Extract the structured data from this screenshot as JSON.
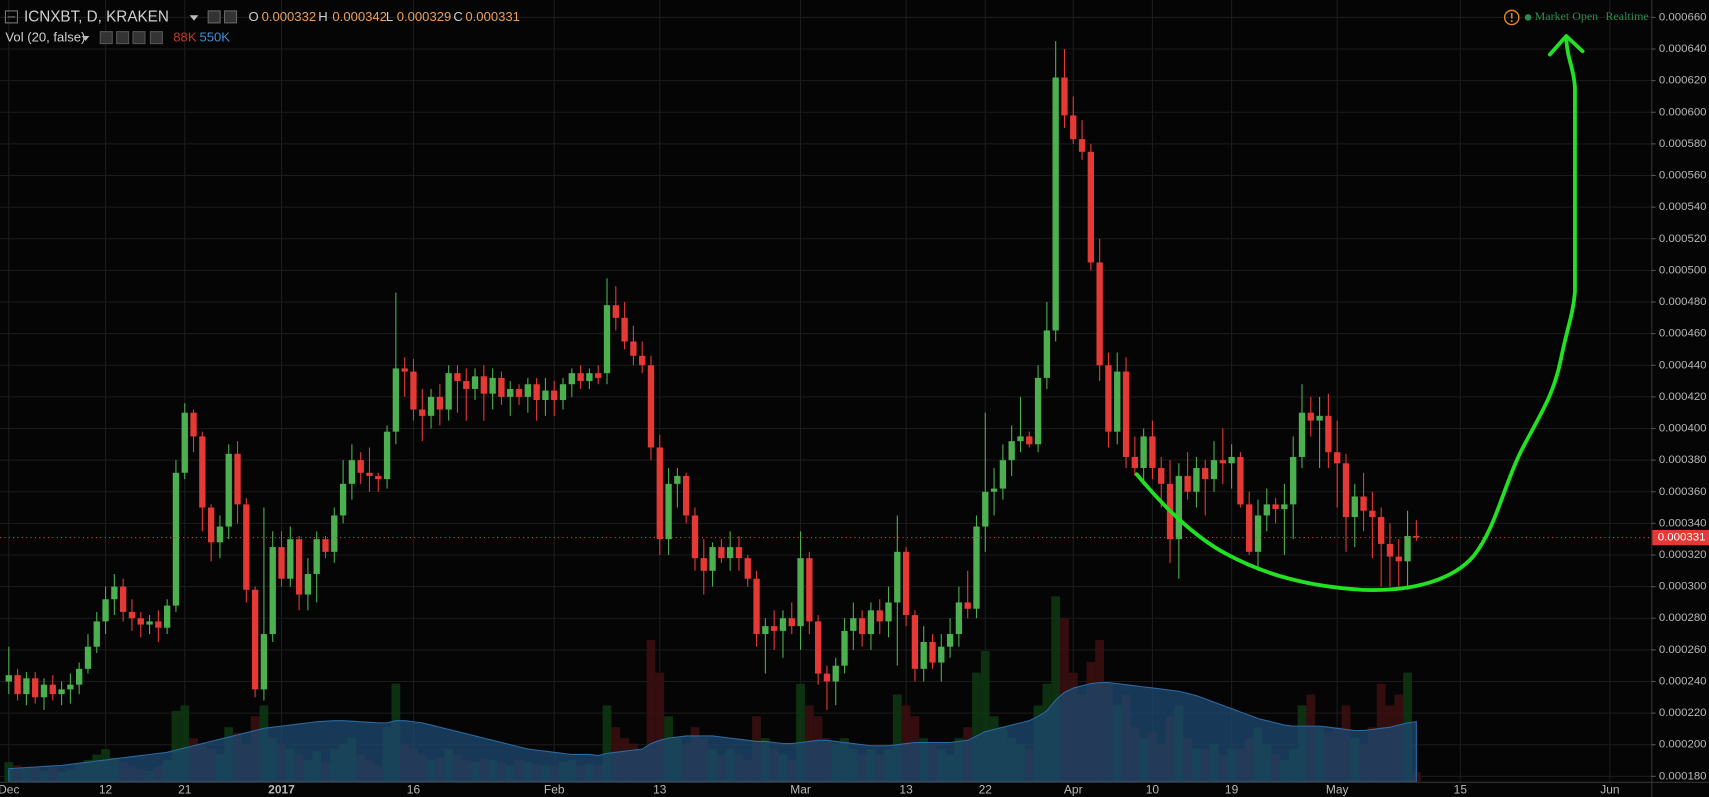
{
  "header": {
    "symbol": "ICNXBT, D, KRAKEN",
    "ohlc": [
      {
        "key": "O",
        "value": "0.000332"
      },
      {
        "key": "H",
        "value": "0.000342"
      },
      {
        "key": "L",
        "value": "0.000329"
      },
      {
        "key": "C",
        "value": "0.000331"
      }
    ],
    "indicator": "Vol (20, false)",
    "indicator_values": [
      {
        "label": "88K",
        "color": "#c0392b"
      },
      {
        "label": "550K",
        "color": "#3d8fd6"
      }
    ],
    "status": "Market Open",
    "mode": "Realtime"
  },
  "chart_data": {
    "type": "candlestick",
    "up_color": "#4caf50",
    "down_color": "#e53935",
    "volume_up_color": "#0d3512",
    "volume_down_color": "#3a0f0f",
    "ma_color": "#1d4a72",
    "grid": true,
    "grid_color": "#1c1c1c",
    "xlim": [
      -1,
      186.7
    ],
    "xticks": [
      {
        "value": 0,
        "label": "Dec"
      },
      {
        "value": 11,
        "label": "12"
      },
      {
        "value": 20,
        "label": "21"
      },
      {
        "value": 31,
        "label": "2017",
        "bold": true
      },
      {
        "value": 46,
        "label": "16"
      },
      {
        "value": 62,
        "label": "Feb"
      },
      {
        "value": 74,
        "label": "13"
      },
      {
        "value": 90,
        "label": "Mar"
      },
      {
        "value": 102,
        "label": "13"
      },
      {
        "value": 111,
        "label": "22"
      },
      {
        "value": 121,
        "label": "Apr"
      },
      {
        "value": 130,
        "label": "10"
      },
      {
        "value": 139,
        "label": "19"
      },
      {
        "value": 151,
        "label": "May"
      },
      {
        "value": 165,
        "label": "15"
      },
      {
        "value": 182,
        "label": "Jun"
      }
    ],
    "ylim": [
      0.0001766,
      0.000671
    ],
    "yticks": [
      {
        "value": 0.00018,
        "label": "0.000180"
      },
      {
        "value": 0.0002,
        "label": "0.000200"
      },
      {
        "value": 0.00022,
        "label": "0.000220"
      },
      {
        "value": 0.00024,
        "label": "0.000240"
      },
      {
        "value": 0.00026,
        "label": "0.000260"
      },
      {
        "value": 0.00028,
        "label": "0.000280"
      },
      {
        "value": 0.0003,
        "label": "0.000300"
      },
      {
        "value": 0.00032,
        "label": "0.000320"
      },
      {
        "value": 0.00034,
        "label": "0.000340"
      },
      {
        "value": 0.00036,
        "label": "0.000360"
      },
      {
        "value": 0.00038,
        "label": "0.000380"
      },
      {
        "value": 0.0004,
        "label": "0.000400"
      },
      {
        "value": 0.00042,
        "label": "0.000420"
      },
      {
        "value": 0.00044,
        "label": "0.000440"
      },
      {
        "value": 0.00046,
        "label": "0.000460"
      },
      {
        "value": 0.00048,
        "label": "0.000480"
      },
      {
        "value": 0.0005,
        "label": "0.000500"
      },
      {
        "value": 0.00052,
        "label": "0.000520"
      },
      {
        "value": 0.00054,
        "label": "0.000540"
      },
      {
        "value": 0.00056,
        "label": "0.000560"
      },
      {
        "value": 0.00058,
        "label": "0.000580"
      },
      {
        "value": 0.0006,
        "label": "0.000600"
      },
      {
        "value": 0.00062,
        "label": "0.000620"
      },
      {
        "value": 0.00064,
        "label": "0.000640"
      },
      {
        "value": 0.00066,
        "label": "0.000660"
      }
    ],
    "last_price": {
      "value": 0.000331,
      "label": "0.000331"
    },
    "open": [
      0.00024,
      0.000244,
      0.000232,
      0.000242,
      0.00023,
      0.000238,
      0.000232,
      0.000235,
      0.000238,
      0.000248,
      0.000262,
      0.000278,
      0.000292,
      0.0003,
      0.000284,
      0.00028,
      0.000276,
      0.000278,
      0.000274,
      0.000288,
      0.000372,
      0.00041,
      0.000395,
      0.00035,
      0.000328,
      0.000338,
      0.000384,
      0.000352,
      0.000298,
      0.000235,
      0.00027,
      0.000325,
      0.000305,
      0.00033,
      0.000295,
      0.000308,
      0.00033,
      0.000322,
      0.000345,
      0.000365,
      0.00038,
      0.000372,
      0.00037,
      0.000368,
      0.000398,
      0.000438,
      0.000436,
      0.000412,
      0.000408,
      0.00042,
      0.000412,
      0.000435,
      0.00043,
      0.000425,
      0.000433,
      0.000422,
      0.000432,
      0.00042,
      0.000425,
      0.00042,
      0.000428,
      0.000418,
      0.000424,
      0.000418,
      0.000428,
      0.000435,
      0.00043,
      0.000435,
      0.000435,
      0.000478,
      0.00047,
      0.000455,
      0.000446,
      0.00044,
      0.000388,
      0.00033,
      0.000365,
      0.00037,
      0.000345,
      0.000318,
      0.00031,
      0.000325,
      0.000318,
      0.000325,
      0.000318,
      0.000305,
      0.00027,
      0.000275,
      0.000272,
      0.00028,
      0.000275,
      0.000318,
      0.000278,
      0.000245,
      0.00024,
      0.00025,
      0.000272,
      0.00028,
      0.00027,
      0.000285,
      0.000278,
      0.00029,
      0.000322,
      0.000282,
      0.000248,
      0.000265,
      0.000252,
      0.000262,
      0.00027,
      0.00029,
      0.000286,
      0.000338,
      0.00036,
      0.000362,
      0.00038,
      0.000392,
      0.000395,
      0.00039,
      0.000432,
      0.000462,
      0.000622,
      0.000598,
      0.000583,
      0.000575,
      0.000505,
      0.00044,
      0.000398,
      0.000436,
      0.000382,
      0.000375,
      0.000395,
      0.000375,
      0.000365,
      0.00033,
      0.00037,
      0.00036,
      0.000375,
      0.000368,
      0.00038,
      0.000378,
      0.000382,
      0.000352,
      0.000322,
      0.000345,
      0.000352,
      0.000349,
      0.000352,
      0.000382,
      0.00041,
      0.000405,
      0.000408,
      0.000385,
      0.000378,
      0.000344,
      0.000357,
      0.000348,
      0.000344,
      0.000327,
      0.000319,
      0.000316,
      0.000332
    ],
    "high": [
      0.000262,
      0.000248,
      0.000246,
      0.000246,
      0.000242,
      0.000244,
      0.00024,
      0.000245,
      0.000252,
      0.00027,
      0.000284,
      0.0003,
      0.000308,
      0.000305,
      0.000292,
      0.000284,
      0.000282,
      0.000285,
      0.000292,
      0.00038,
      0.000416,
      0.000412,
      0.000398,
      0.000352,
      0.000345,
      0.00039,
      0.000392,
      0.000356,
      0.0003,
      0.00035,
      0.000335,
      0.000335,
      0.000338,
      0.000332,
      0.000318,
      0.000335,
      0.000332,
      0.00035,
      0.00038,
      0.00039,
      0.000385,
      0.000388,
      0.000372,
      0.000402,
      0.000486,
      0.000445,
      0.000444,
      0.000425,
      0.000425,
      0.000428,
      0.00044,
      0.00044,
      0.000438,
      0.000438,
      0.00044,
      0.000438,
      0.000436,
      0.00043,
      0.000428,
      0.000432,
      0.000432,
      0.000432,
      0.00043,
      0.000432,
      0.000438,
      0.00044,
      0.000438,
      0.00044,
      0.000495,
      0.00049,
      0.00048,
      0.000465,
      0.000455,
      0.000446,
      0.000396,
      0.000375,
      0.000375,
      0.000372,
      0.00035,
      0.00033,
      0.000328,
      0.00033,
      0.000335,
      0.000332,
      0.00032,
      0.00031,
      0.00028,
      0.000285,
      0.000285,
      0.00029,
      0.000335,
      0.000322,
      0.000282,
      0.00025,
      0.000255,
      0.00028,
      0.00029,
      0.000285,
      0.00029,
      0.000292,
      0.0003,
      0.000345,
      0.000325,
      0.000285,
      0.000275,
      0.00027,
      0.00027,
      0.00028,
      0.0003,
      0.00031,
      0.000345,
      0.00041,
      0.000375,
      0.00039,
      0.000402,
      0.00042,
      0.000398,
      0.00044,
      0.00048,
      0.000645,
      0.00064,
      0.00061,
      0.000595,
      0.00058,
      0.00052,
      0.000448,
      0.000448,
      0.000445,
      0.000395,
      0.0004,
      0.000405,
      0.000382,
      0.00038,
      0.000378,
      0.000385,
      0.000382,
      0.00038,
      0.000392,
      0.0004,
      0.00039,
      0.000385,
      0.00036,
      0.000355,
      0.000362,
      0.000356,
      0.000365,
      0.000395,
      0.000428,
      0.00042,
      0.00042,
      0.000422,
      0.000405,
      0.000384,
      0.000365,
      0.000372,
      0.00036,
      0.00035,
      0.00034,
      0.00033,
      0.000348,
      0.000342
    ],
    "low": [
      0.000232,
      0.000228,
      0.000225,
      0.000226,
      0.000222,
      0.000228,
      0.000225,
      0.000226,
      0.000232,
      0.000245,
      0.000258,
      0.00027,
      0.000282,
      0.000278,
      0.000272,
      0.000268,
      0.00027,
      0.000265,
      0.00027,
      0.000284,
      0.000368,
      0.000385,
      0.000335,
      0.000316,
      0.000318,
      0.00033,
      0.00034,
      0.00029,
      0.00023,
      0.000228,
      0.000265,
      0.0003,
      0.0003,
      0.000285,
      0.000285,
      0.00029,
      0.000318,
      0.000315,
      0.00034,
      0.000355,
      0.000365,
      0.00036,
      0.00036,
      0.000362,
      0.00039,
      0.00042,
      0.000405,
      0.000392,
      0.0004,
      0.000402,
      0.000405,
      0.00041,
      0.000405,
      0.000418,
      0.000405,
      0.000412,
      0.000415,
      0.000408,
      0.000415,
      0.00041,
      0.000405,
      0.000408,
      0.000408,
      0.000412,
      0.00042,
      0.000425,
      0.000425,
      0.000428,
      0.000428,
      0.000462,
      0.00045,
      0.00044,
      0.000435,
      0.00038,
      0.00032,
      0.00032,
      0.00035,
      0.00034,
      0.00031,
      0.000295,
      0.0003,
      0.000315,
      0.00031,
      0.00031,
      0.0003,
      0.000262,
      0.000245,
      0.00026,
      0.000255,
      0.00027,
      0.00026,
      0.00027,
      0.000238,
      0.000222,
      0.000225,
      0.000245,
      0.00026,
      0.000262,
      0.00026,
      0.00027,
      0.000268,
      0.00025,
      0.000275,
      0.00024,
      0.00024,
      0.000248,
      0.00024,
      0.000255,
      0.000262,
      0.00028,
      0.00028,
      0.000322,
      0.000345,
      0.000355,
      0.00037,
      0.000385,
      0.000388,
      0.000385,
      0.000425,
      0.000455,
      0.00059,
      0.00058,
      0.00057,
      0.0005,
      0.00043,
      0.000388,
      0.00039,
      0.000375,
      0.00037,
      0.000365,
      0.000368,
      0.00035,
      0.000315,
      0.000305,
      0.000355,
      0.00035,
      0.000345,
      0.00036,
      0.000365,
      0.000362,
      0.00035,
      0.00032,
      0.00031,
      0.000335,
      0.00034,
      0.00032,
      0.00033,
      0.000375,
      0.000395,
      0.000375,
      0.000375,
      0.00035,
      0.000322,
      0.000325,
      0.000335,
      0.000318,
      0.0003,
      0.0003,
      0.0003,
      0.000298,
      0.000329
    ],
    "close": [
      0.000244,
      0.000232,
      0.000242,
      0.00023,
      0.000238,
      0.000232,
      0.000235,
      0.000238,
      0.000248,
      0.000262,
      0.000278,
      0.000292,
      0.0003,
      0.000284,
      0.00028,
      0.000276,
      0.000278,
      0.000274,
      0.000288,
      0.000372,
      0.00041,
      0.000395,
      0.00035,
      0.000328,
      0.000338,
      0.000384,
      0.000352,
      0.000298,
      0.000235,
      0.00027,
      0.000325,
      0.000305,
      0.00033,
      0.000295,
      0.000308,
      0.00033,
      0.000322,
      0.000345,
      0.000365,
      0.00038,
      0.000372,
      0.00037,
      0.000368,
      0.000398,
      0.000438,
      0.000436,
      0.000412,
      0.000408,
      0.00042,
      0.000412,
      0.000435,
      0.00043,
      0.000425,
      0.000433,
      0.000422,
      0.000432,
      0.00042,
      0.000425,
      0.00042,
      0.000428,
      0.000418,
      0.000424,
      0.000418,
      0.000428,
      0.000435,
      0.00043,
      0.000435,
      0.000432,
      0.000478,
      0.00047,
      0.000455,
      0.000446,
      0.00044,
      0.000388,
      0.00033,
      0.000365,
      0.00037,
      0.000345,
      0.000318,
      0.00031,
      0.000325,
      0.000318,
      0.000325,
      0.000318,
      0.000305,
      0.00027,
      0.000275,
      0.000272,
      0.00028,
      0.000275,
      0.000318,
      0.000278,
      0.000245,
      0.00024,
      0.00025,
      0.000272,
      0.00028,
      0.00027,
      0.000285,
      0.000278,
      0.00029,
      0.000322,
      0.000282,
      0.000248,
      0.000265,
      0.000252,
      0.000262,
      0.00027,
      0.00029,
      0.000286,
      0.000338,
      0.00036,
      0.000362,
      0.00038,
      0.000392,
      0.000395,
      0.00039,
      0.000432,
      0.000462,
      0.000622,
      0.000598,
      0.000583,
      0.000575,
      0.000505,
      0.00044,
      0.000398,
      0.000436,
      0.000382,
      0.000375,
      0.000395,
      0.000375,
      0.000365,
      0.00033,
      0.00037,
      0.00036,
      0.000375,
      0.000368,
      0.00038,
      0.000378,
      0.000382,
      0.000352,
      0.000322,
      0.000345,
      0.000352,
      0.000349,
      0.000352,
      0.000382,
      0.00041,
      0.000405,
      0.000408,
      0.000385,
      0.000378,
      0.000344,
      0.000357,
      0.000348,
      0.000344,
      0.000327,
      0.000319,
      0.000316,
      0.000332,
      0.000331
    ],
    "vlim": [
      0,
      1900000.0
    ],
    "volume": [
      180000.0,
      150000.0,
      120000.0,
      140000.0,
      100000.0,
      130000.0,
      90000.0,
      110000.0,
      160000.0,
      200000.0,
      250000.0,
      300000.0,
      220000.0,
      180000.0,
      150000.0,
      120000.0,
      100000.0,
      140000.0,
      200000.0,
      650000.0,
      700000.0,
      400000.0,
      350000.0,
      300000.0,
      250000.0,
      500000.0,
      450000.0,
      350000.0,
      600000.0,
      700000.0,
      400000.0,
      350000.0,
      300000.0,
      250000.0,
      200000.0,
      280000.0,
      180000.0,
      300000.0,
      350000.0,
      400000.0,
      250000.0,
      200000.0,
      150000.0,
      500000.0,
      900000.0,
      350000.0,
      300000.0,
      250000.0,
      200000.0,
      220000.0,
      300000.0,
      250000.0,
      200000.0,
      180000.0,
      220000.0,
      200000.0,
      180000.0,
      150000.0,
      200000.0,
      180000.0,
      160000.0,
      150000.0,
      150000.0,
      180000.0,
      200000.0,
      150000.0,
      160000.0,
      150000.0,
      700000.0,
      500000.0,
      400000.0,
      350000.0,
      300000.0,
      1300000.0,
      1000000.0,
      600000.0,
      400000.0,
      350000.0,
      500000.0,
      400000.0,
      300000.0,
      250000.0,
      300000.0,
      250000.0,
      200000.0,
      600000.0,
      400000.0,
      300000.0,
      250000.0,
      200000.0,
      900000.0,
      700000.0,
      600000.0,
      400000.0,
      350000.0,
      400000.0,
      300000.0,
      250000.0,
      300000.0,
      250000.0,
      300000.0,
      800000.0,
      700000.0,
      600000.0,
      400000.0,
      350000.0,
      300000.0,
      250000.0,
      400000.0,
      500000.0,
      1000000.0,
      1200000.0,
      600000.0,
      500000.0,
      400000.0,
      350000.0,
      300000.0,
      700000.0,
      900000.0,
      1700000.0,
      1500000.0,
      1000000.0,
      800000.0,
      1100000.0,
      1300000.0,
      900000.0,
      700000.0,
      800000.0,
      500000.0,
      400000.0,
      450000.0,
      350000.0,
      600000.0,
      700000.0,
      400000.0,
      300000.0,
      300000.0,
      350000.0,
      250000.0,
      300000.0,
      300000.0,
      400000.0,
      500000.0,
      350000.0,
      250000.0,
      200000.0,
      300000.0,
      700000.0,
      800000.0,
      500000.0,
      450000.0,
      500000.0,
      700000.0,
      400000.0,
      350000.0,
      500000.0,
      900000.0,
      700000.0,
      800000.0,
      1000000.0,
      88000.0
    ],
    "volume_ma": [
      120000.0,
      125000.0,
      130000.0,
      135000.0,
      140000.0,
      145000.0,
      150000.0,
      160000.0,
      170000.0,
      180000.0,
      190000.0,
      200000.0,
      210000.0,
      220000.0,
      230000.0,
      240000.0,
      250000.0,
      260000.0,
      270000.0,
      290000.0,
      310000.0,
      330000.0,
      350000.0,
      370000.0,
      390000.0,
      410000.0,
      430000.0,
      450000.0,
      470000.0,
      490000.0,
      500000.0,
      510000.0,
      520000.0,
      530000.0,
      540000.0,
      550000.0,
      555000.0,
      560000.0,
      560000.0,
      555000.0,
      550000.0,
      545000.0,
      540000.0,
      540000.0,
      560000.0,
      560000.0,
      550000.0,
      540000.0,
      520000.0,
      500000.0,
      480000.0,
      460000.0,
      440000.0,
      420000.0,
      400000.0,
      380000.0,
      360000.0,
      340000.0,
      320000.0,
      300000.0,
      290000.0,
      280000.0,
      270000.0,
      260000.0,
      250000.0,
      250000.0,
      250000.0,
      240000.0,
      260000.0,
      270000.0,
      280000.0,
      290000.0,
      300000.0,
      350000.0,
      380000.0,
      400000.0,
      410000.0,
      420000.0,
      420000.0,
      420000.0,
      420000.0,
      410000.0,
      400000.0,
      390000.0,
      380000.0,
      370000.0,
      370000.0,
      360000.0,
      350000.0,
      350000.0,
      360000.0,
      370000.0,
      380000.0,
      380000.0,
      370000.0,
      360000.0,
      350000.0,
      340000.0,
      330000.0,
      330000.0,
      330000.0,
      340000.0,
      350000.0,
      360000.0,
      360000.0,
      360000.0,
      360000.0,
      360000.0,
      370000.0,
      380000.0,
      420000.0,
      460000.0,
      480000.0,
      500000.0,
      520000.0,
      540000.0,
      560000.0,
      600000.0,
      650000.0,
      750000.0,
      820000.0,
      860000.0,
      880000.0,
      900000.0,
      910000.0,
      910000.0,
      900000.0,
      890000.0,
      880000.0,
      870000.0,
      860000.0,
      850000.0,
      840000.0,
      830000.0,
      810000.0,
      790000.0,
      760000.0,
      730000.0,
      700000.0,
      670000.0,
      640000.0,
      610000.0,
      580000.0,
      560000.0,
      540000.0,
      520000.0,
      510000.0,
      510000.0,
      510000.0,
      510000.0,
      500000.0,
      490000.0,
      480000.0,
      470000.0,
      470000.0,
      480000.0,
      490000.0,
      500000.0,
      520000.0,
      540000.0,
      550000.0
    ]
  }
}
